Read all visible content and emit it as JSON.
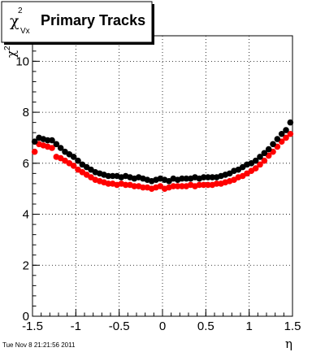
{
  "chart_data": {
    "type": "scatter",
    "title": {
      "symbol": "χ",
      "superscript": "2",
      "subscript": "Vx",
      "text": "Primary Tracks"
    },
    "xlabel": "η",
    "ylabel": {
      "symbol": "χ",
      "superscript": "2"
    },
    "xlim": [
      -1.5,
      1.5
    ],
    "ylim": [
      0,
      11
    ],
    "grid": true,
    "x_tick_values": [
      -1.5,
      -1,
      -0.5,
      0,
      0.5,
      1,
      1.5
    ],
    "x_tick_labels": [
      "-1.5",
      "-1",
      "-0.5",
      "0",
      "0.5",
      "1",
      "1.5"
    ],
    "y_tick_values": [
      0,
      2,
      4,
      6,
      8,
      10
    ],
    "y_tick_labels": [
      "0",
      "2",
      "4",
      "6",
      "8",
      "10"
    ],
    "x": [
      -1.475,
      -1.425,
      -1.375,
      -1.325,
      -1.275,
      -1.225,
      -1.175,
      -1.125,
      -1.075,
      -1.025,
      -0.975,
      -0.925,
      -0.875,
      -0.825,
      -0.775,
      -0.725,
      -0.675,
      -0.625,
      -0.575,
      -0.525,
      -0.475,
      -0.425,
      -0.375,
      -0.325,
      -0.275,
      -0.225,
      -0.175,
      -0.125,
      -0.075,
      -0.025,
      0.025,
      0.075,
      0.125,
      0.175,
      0.225,
      0.275,
      0.325,
      0.375,
      0.425,
      0.475,
      0.525,
      0.575,
      0.625,
      0.675,
      0.725,
      0.775,
      0.825,
      0.875,
      0.925,
      0.975,
      1.025,
      1.075,
      1.125,
      1.175,
      1.225,
      1.275,
      1.325,
      1.375,
      1.425,
      1.475
    ],
    "series": [
      {
        "color": "#000000",
        "values": [
          6.85,
          7.0,
          6.95,
          6.9,
          6.9,
          6.75,
          6.6,
          6.45,
          6.35,
          6.25,
          6.1,
          5.95,
          5.85,
          5.75,
          5.65,
          5.6,
          5.55,
          5.5,
          5.5,
          5.5,
          5.45,
          5.5,
          5.45,
          5.4,
          5.45,
          5.4,
          5.35,
          5.3,
          5.35,
          5.4,
          5.35,
          5.3,
          5.4,
          5.35,
          5.4,
          5.4,
          5.4,
          5.45,
          5.4,
          5.45,
          5.45,
          5.45,
          5.45,
          5.5,
          5.55,
          5.6,
          5.7,
          5.75,
          5.85,
          5.95,
          6.0,
          6.1,
          6.25,
          6.4,
          6.55,
          6.75,
          6.95,
          7.15,
          7.3,
          7.6
        ]
      },
      {
        "color": "#ff0000",
        "values": [
          6.45,
          6.75,
          6.7,
          6.65,
          6.6,
          6.25,
          6.2,
          6.1,
          6.0,
          5.9,
          5.75,
          5.65,
          5.55,
          5.45,
          5.35,
          5.3,
          5.25,
          5.2,
          5.2,
          5.15,
          5.2,
          5.15,
          5.15,
          5.1,
          5.1,
          5.05,
          5.05,
          5.0,
          5.05,
          5.1,
          5.0,
          5.05,
          5.1,
          5.1,
          5.1,
          5.1,
          5.15,
          5.1,
          5.15,
          5.15,
          5.15,
          5.15,
          5.2,
          5.2,
          5.25,
          5.3,
          5.35,
          5.45,
          5.5,
          5.6,
          5.7,
          5.8,
          5.95,
          6.1,
          6.3,
          6.45,
          6.65,
          6.85,
          7.0,
          7.15
        ]
      }
    ]
  },
  "timestamp": "Tue Nov  8 21:21:56 2011"
}
